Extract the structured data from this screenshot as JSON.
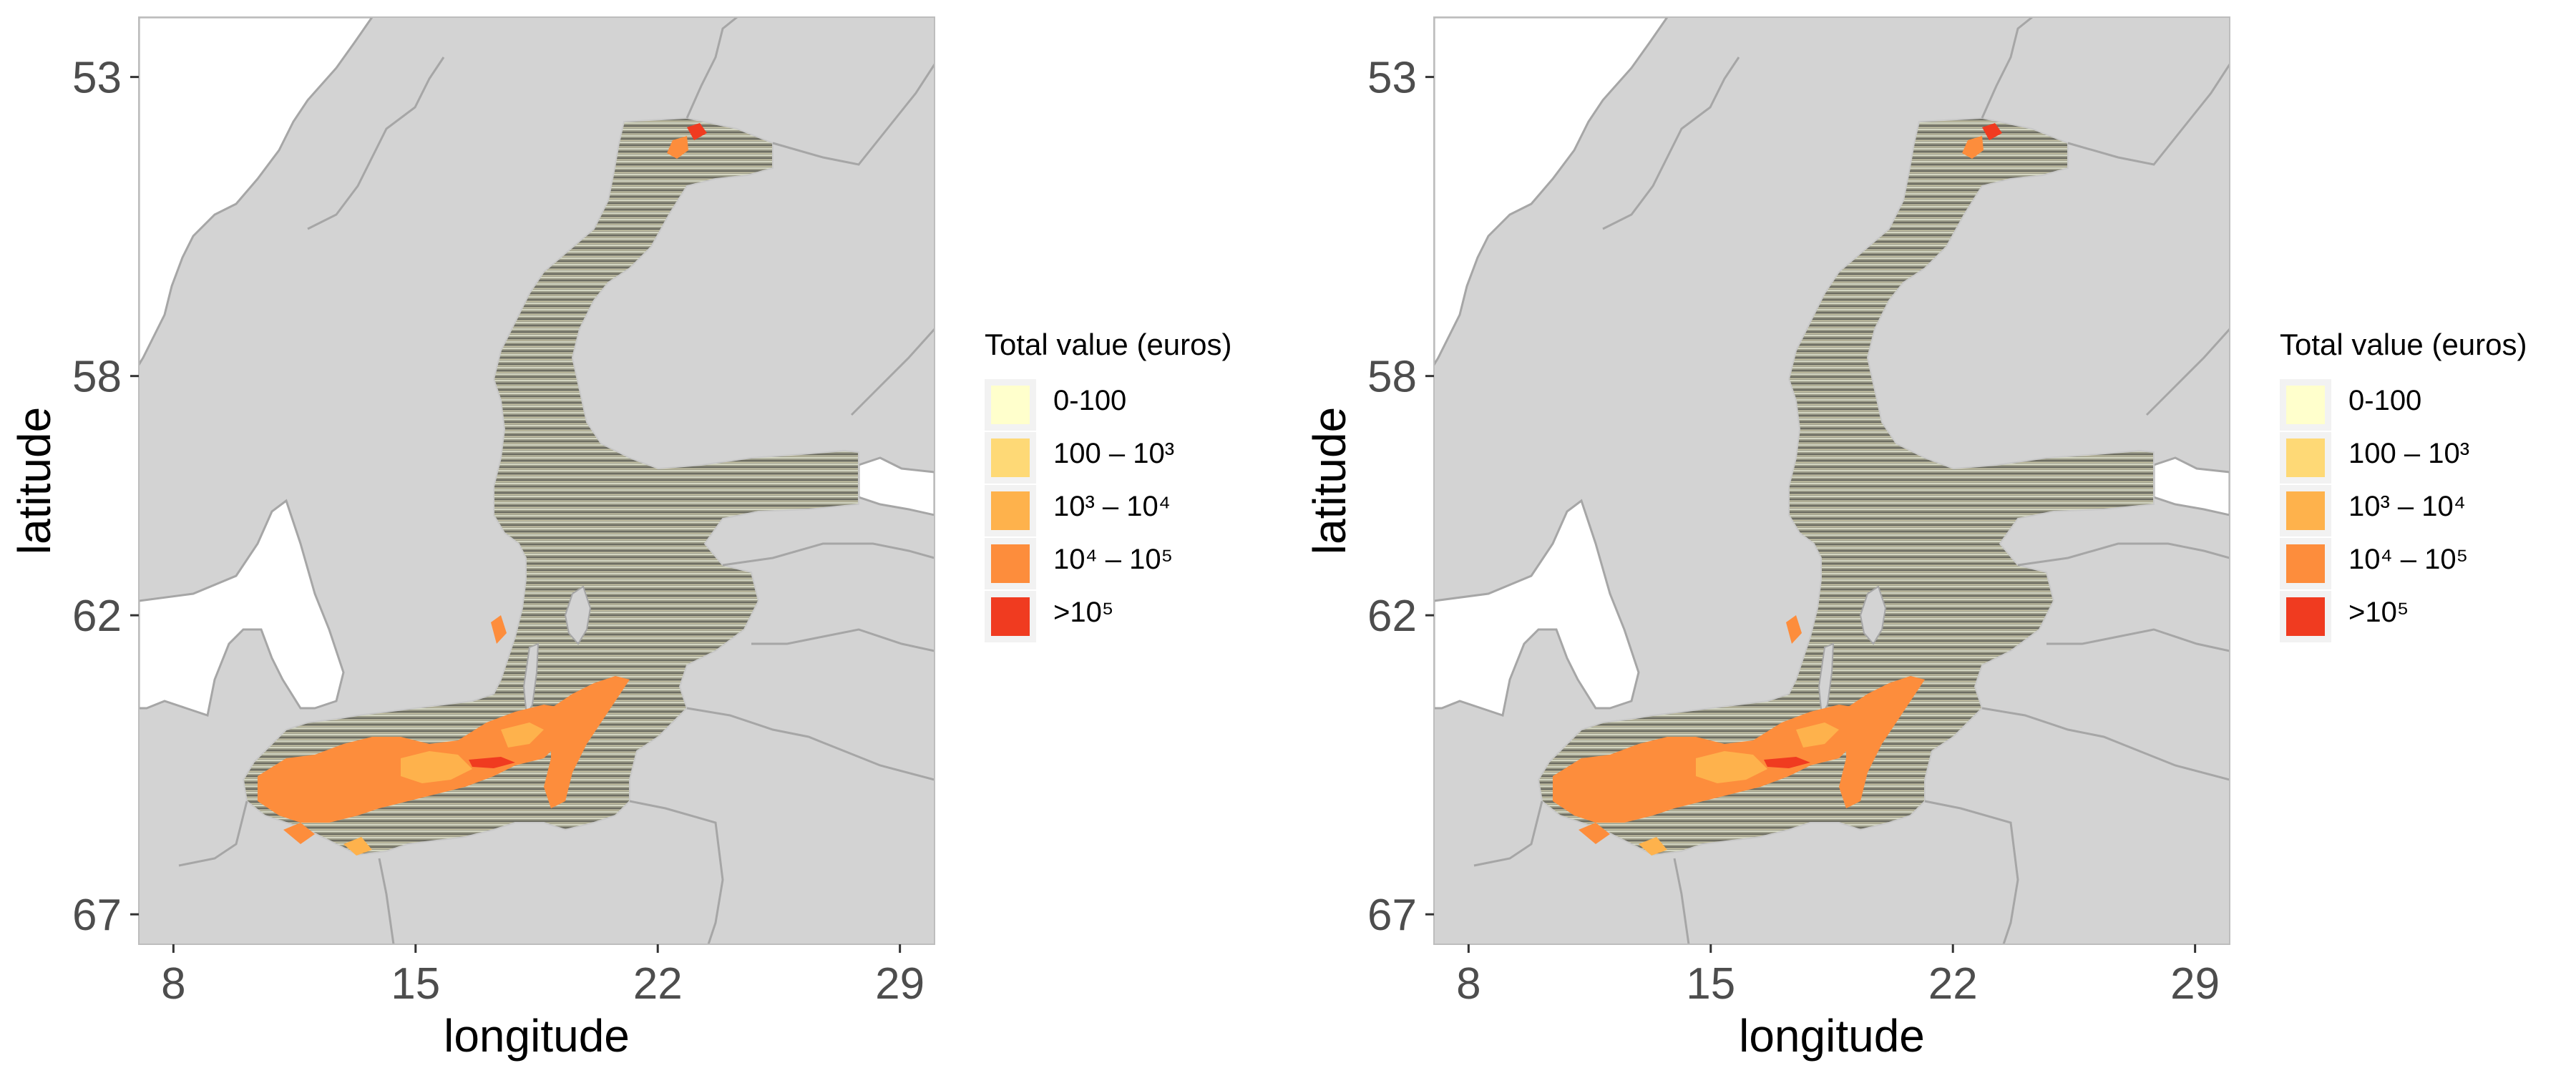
{
  "panels": [
    {
      "id": "left",
      "xlabel": "longitude",
      "ylabel": "latitude",
      "x_ticks": [
        "8",
        "15",
        "22",
        "29"
      ],
      "y_ticks": [
        "67",
        "62",
        "58",
        "53"
      ],
      "legend_title": "Total value (euros)",
      "legend_labels": [
        "0-100",
        "100 – 10³",
        "10³ – 10⁴",
        "10⁴ – 10⁵",
        ">10⁵"
      ]
    },
    {
      "id": "right",
      "xlabel": "longitude",
      "ylabel": "latitude",
      "x_ticks": [
        "8",
        "15",
        "22",
        "29"
      ],
      "y_ticks": [
        "67",
        "62",
        "58",
        "53"
      ],
      "legend_title": "Total value (euros)",
      "legend_labels": [
        "0-100",
        "100 – 10³",
        "10³ – 10⁴",
        "10⁴ – 10⁵",
        ">10⁵"
      ]
    }
  ],
  "chart_data": [
    {
      "type": "heatmap",
      "xlabel": "longitude",
      "ylabel": "latitude",
      "xlim": [
        7,
        30
      ],
      "ylim": [
        52.5,
        68
      ],
      "x_ticks": [
        8,
        15,
        22,
        29
      ],
      "y_ticks": [
        53,
        58,
        62,
        67
      ],
      "legend_title": "Total value (euros)",
      "legend_placement": "right",
      "categories": [
        "0-100",
        "100 – 10³",
        "10³ – 10⁴",
        "10⁴ – 10⁵",
        ">10⁵"
      ],
      "colors": [
        "#ffffcc",
        "#fed976",
        "#feb24c",
        "#fd8d3c",
        "#f03b20"
      ],
      "land_color": "#d3d3d3",
      "border_color": "#a6a6a6",
      "sea_color": "#ffffff",
      "grid": false
    },
    {
      "type": "heatmap",
      "xlabel": "longitude",
      "ylabel": "latitude",
      "xlim": [
        7,
        30
      ],
      "ylim": [
        52.5,
        68
      ],
      "x_ticks": [
        8,
        15,
        22,
        29
      ],
      "y_ticks": [
        53,
        58,
        62,
        67
      ],
      "legend_title": "Total value (euros)",
      "legend_placement": "right",
      "categories": [
        "0-100",
        "100 – 10³",
        "10³ – 10⁴",
        "10⁴ – 10⁵",
        ">10⁵"
      ],
      "colors": [
        "#ffffcc",
        "#fed976",
        "#feb24c",
        "#fd8d3c",
        "#f03b20"
      ],
      "land_color": "#d3d3d3",
      "border_color": "#a6a6a6",
      "sea_color": "#ffffff",
      "grid": false
    }
  ]
}
